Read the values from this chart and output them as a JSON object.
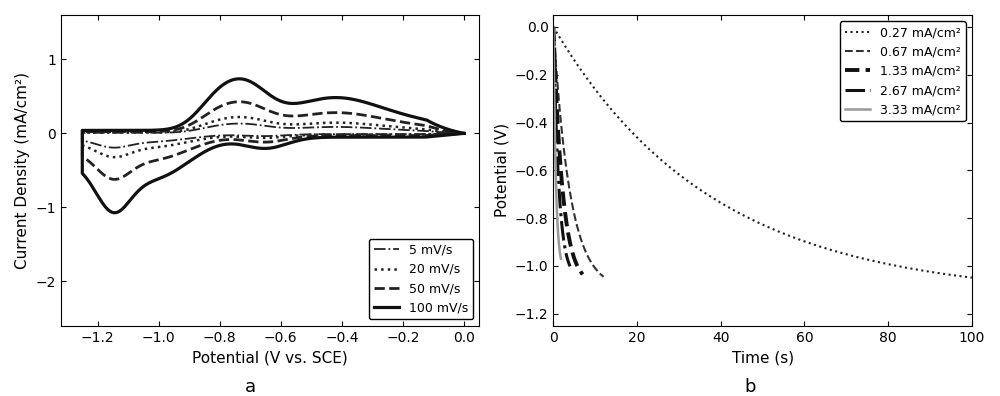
{
  "fig_width": 10.0,
  "fig_height": 3.96,
  "dpi": 100,
  "panel_a": {
    "xlabel": "Potential (V vs. SCE)",
    "ylabel": "Current Density (mA/cm²)",
    "xlim": [
      -1.32,
      0.05
    ],
    "ylim": [
      -2.6,
      1.6
    ],
    "xticks": [
      -1.2,
      -1.0,
      -0.8,
      -0.6,
      -0.4,
      -0.2,
      0.0
    ],
    "yticks": [
      -2,
      -1,
      0,
      1
    ],
    "label_bottom": "a",
    "curves": [
      {
        "label": "5 mV/s",
        "linestyle": "-.",
        "linewidth": 1.3,
        "color": "#222222"
      },
      {
        "label": "20 mV/s",
        "linestyle": ":",
        "linewidth": 1.8,
        "color": "#222222"
      },
      {
        "label": "50 mV/s",
        "linestyle": "--",
        "linewidth": 2.0,
        "color": "#222222"
      },
      {
        "label": "100 mV/s",
        "linestyle": "-",
        "linewidth": 2.3,
        "color": "#111111"
      }
    ],
    "cv_scales": [
      0.18,
      0.3,
      0.58,
      1.0
    ]
  },
  "panel_b": {
    "xlabel": "Time (s)",
    "ylabel": "Potential (V)",
    "xlim": [
      0,
      100
    ],
    "ylim": [
      -1.25,
      0.05
    ],
    "xticks": [
      0,
      20,
      40,
      60,
      80,
      100
    ],
    "yticks": [
      0.0,
      -0.2,
      -0.4,
      -0.6,
      -0.8,
      -1.0,
      -1.2
    ],
    "label_bottom": "b",
    "curves": [
      {
        "label": "0.27 mA/cm²",
        "linestyle": ":",
        "linewidth": 1.5,
        "color": "#222222",
        "t_max": 100,
        "v_end": -1.13,
        "tau": 38
      },
      {
        "label": "0.67 mA/cm²",
        "linestyle": "--",
        "linewidth": 1.5,
        "color": "#333333",
        "t_max": 12,
        "v_end": -1.1,
        "tau": 4.0
      },
      {
        "label": "1.33 mA/cm²",
        "linestyle": "--",
        "linewidth": 2.8,
        "color": "#111111",
        "t_max": 7,
        "v_end": -1.08,
        "tau": 2.2
      },
      {
        "label": "2.67 mA/cm²",
        "linestyle": "-.",
        "linewidth": 2.2,
        "color": "#111111",
        "t_max": 4,
        "v_end": -1.05,
        "tau": 1.3
      },
      {
        "label": "3.33 mA/cm²",
        "linestyle": "-",
        "linewidth": 1.8,
        "color": "#999999",
        "t_max": 1.8,
        "v_end": -1.02,
        "tau": 0.6
      }
    ]
  }
}
